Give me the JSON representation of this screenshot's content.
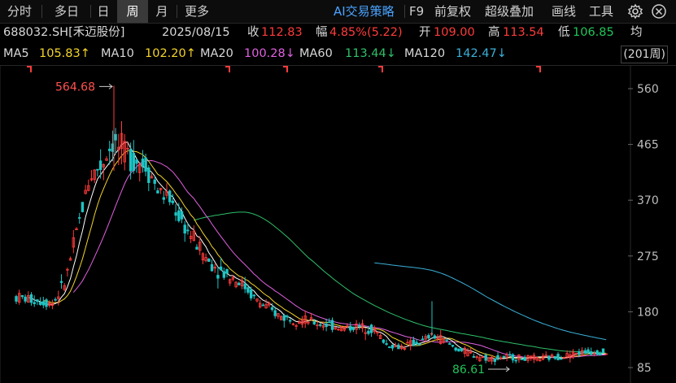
{
  "toolbar": {
    "tabs": [
      "分时",
      "多日",
      "日",
      "周",
      "月",
      "更多"
    ],
    "active_tab": "周",
    "ai_strategy": "AI交易策略",
    "f9": "F9",
    "adjust": "前复权",
    "overlay": "超级叠加",
    "draw": "画线",
    "tools": "工具",
    "icons": [
      "gear-icon",
      "close-icon"
    ]
  },
  "quote": {
    "code": "688032.SH[禾迈股份]",
    "date": "2025/08/15",
    "close_label": "收",
    "close": "112.83",
    "change_label": "幅",
    "change_pct": "4.85%(5.22)",
    "open_label": "开",
    "open": "109.00",
    "high_label": "高",
    "high": "113.54",
    "low_label": "低",
    "low": "106.85",
    "avg_label": "均"
  },
  "ma": {
    "ma5_label": "MA5",
    "ma5": "105.83↑",
    "ma10_label": "MA10",
    "ma10": "102.20↑",
    "ma20_label": "MA20",
    "ma20": "100.28↓",
    "ma60_label": "MA60",
    "ma60": "113.44↓",
    "ma120_label": "MA120",
    "ma120": "142.47↓",
    "period": "(201周)",
    "colors": {
      "ma5": "#ffffff",
      "ma10": "#f3d42a",
      "ma20": "#e060e0",
      "ma60": "#2ec06a",
      "ma120": "#3ab0d8"
    }
  },
  "chart_data": {
    "type": "candlestick",
    "y_ticks": [
      560,
      465,
      370,
      275,
      180,
      85
    ],
    "ylim": [
      70,
      580
    ],
    "annotations": {
      "max_label": "564.68",
      "min_label": "86.61"
    },
    "colors": {
      "up": "#ff3b3b",
      "down": "#1fc4c4"
    }
  }
}
